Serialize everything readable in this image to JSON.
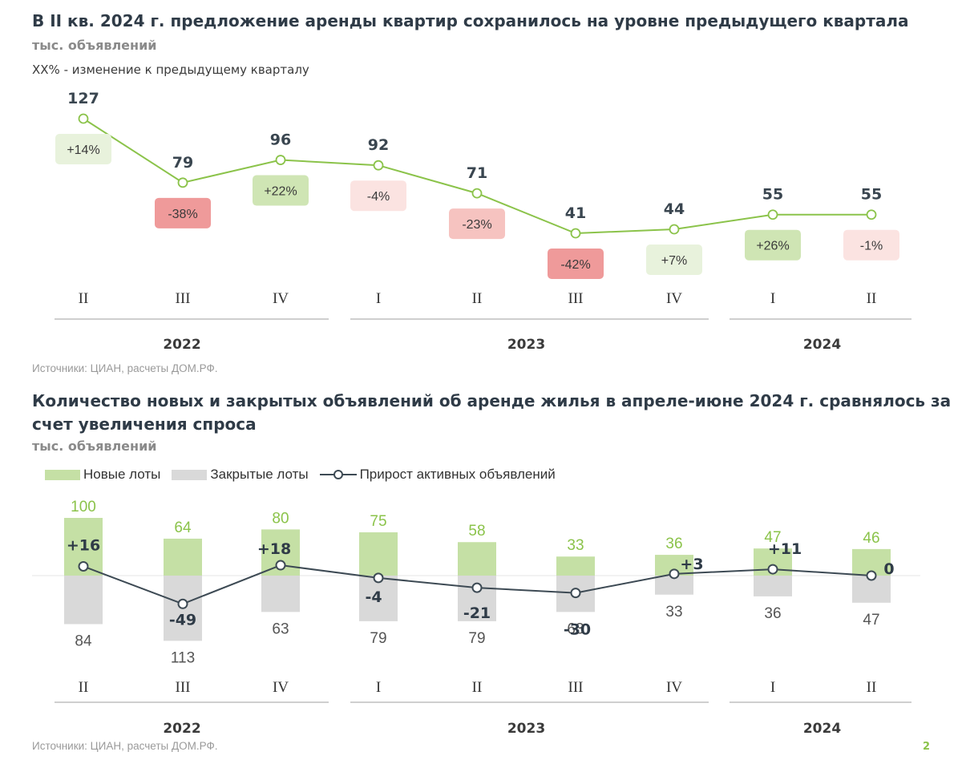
{
  "chart_data": [
    {
      "type": "line",
      "title": "В II кв. 2024 г. предложение аренды квартир сохранилось на уровне предыдущего квартала",
      "subtitle": "тыс. объявлений",
      "note": "XX% - изменение к предыдущему кварталу",
      "categories": [
        "II",
        "III",
        "IV",
        "I",
        "II",
        "III",
        "IV",
        "I",
        "II"
      ],
      "years": [
        {
          "label": "2022",
          "start": 0,
          "end": 2
        },
        {
          "label": "2023",
          "start": 3,
          "end": 6
        },
        {
          "label": "2024",
          "start": 7,
          "end": 8
        }
      ],
      "values": [
        127,
        79,
        96,
        92,
        71,
        41,
        44,
        55,
        55
      ],
      "value_labels": [
        "127",
        "79",
        "96",
        "92",
        "71",
        "41",
        "44",
        "55",
        "55"
      ],
      "changes": [
        "+14%",
        "-38%",
        "+22%",
        "-4%",
        "-23%",
        "-42%",
        "+7%",
        "+26%",
        "-1%"
      ],
      "change_values": [
        14,
        -38,
        22,
        -4,
        -23,
        -42,
        7,
        26,
        -1
      ],
      "source": "Источники: ЦИАН, расчеты ДОМ.РФ."
    },
    {
      "type": "bar",
      "title": "Количество новых и закрытых объявлений об аренде жилья в апреле-июне 2024 г. сравнялось за счет увеличения спроса",
      "subtitle": "тыс. объявлений",
      "categories": [
        "II",
        "III",
        "IV",
        "I",
        "II",
        "III",
        "IV",
        "I",
        "II"
      ],
      "years": [
        {
          "label": "2022",
          "start": 0,
          "end": 2
        },
        {
          "label": "2023",
          "start": 3,
          "end": 6
        },
        {
          "label": "2024",
          "start": 7,
          "end": 8
        }
      ],
      "series": [
        {
          "name": "Новые лоты",
          "values": [
            100,
            64,
            80,
            75,
            58,
            33,
            36,
            47,
            46
          ],
          "labels": [
            "100",
            "64",
            "80",
            "75",
            "58",
            "33",
            "36",
            "47",
            "46"
          ]
        },
        {
          "name": "Закрытые лоты",
          "values": [
            84,
            113,
            63,
            79,
            79,
            63,
            33,
            36,
            47
          ],
          "labels": [
            "84",
            "113",
            "63",
            "79",
            "79",
            "63",
            "33",
            "36",
            "47"
          ]
        },
        {
          "name": "Прирост активных объявлений",
          "values": [
            16,
            -49,
            18,
            -4,
            -21,
            -30,
            3,
            11,
            0
          ],
          "labels": [
            "+16",
            "-49",
            "+18",
            "-4",
            "-21",
            "-30",
            "+3",
            "+11",
            "0"
          ]
        }
      ],
      "source": "Источники: ЦИАН, расчеты ДОМ.РФ."
    }
  ],
  "colors": {
    "green_line": "#8bc34a",
    "bar_new": "#c5e0a5",
    "bar_closed": "#d9d9d9",
    "line_dark": "#3d4a54",
    "title": "#2f3b47"
  },
  "page_number": "2"
}
